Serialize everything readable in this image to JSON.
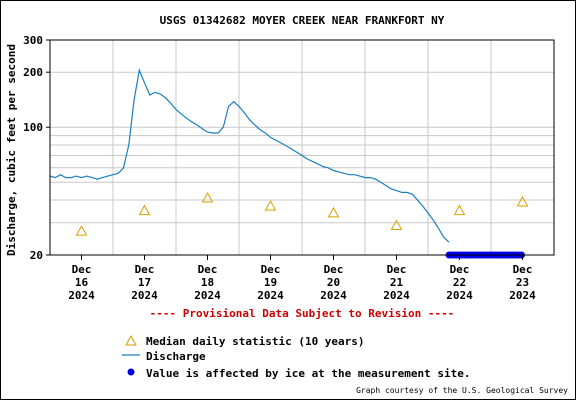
{
  "chart_data": {
    "type": "line",
    "title": "USGS 01342682 MOYER CREEK NEAR FRANKFORT NY",
    "ylabel": "Discharge, cubic feet per second",
    "y_scale": "log",
    "ylim": [
      20,
      300
    ],
    "y_ticks": [
      {
        "value": 20,
        "label": "20"
      },
      {
        "value": 100,
        "label": "100"
      },
      {
        "value": 200,
        "label": "200"
      },
      {
        "value": 300,
        "label": "300"
      }
    ],
    "xlim": [
      "2024-12-15T12:00",
      "2024-12-23T12:00"
    ],
    "x_ticks": [
      {
        "date": "2024-12-16",
        "lines": [
          "Dec",
          "16",
          "2024"
        ]
      },
      {
        "date": "2024-12-17",
        "lines": [
          "Dec",
          "17",
          "2024"
        ]
      },
      {
        "date": "2024-12-18",
        "lines": [
          "Dec",
          "18",
          "2024"
        ]
      },
      {
        "date": "2024-12-19",
        "lines": [
          "Dec",
          "19",
          "2024"
        ]
      },
      {
        "date": "2024-12-20",
        "lines": [
          "Dec",
          "20",
          "2024"
        ]
      },
      {
        "date": "2024-12-21",
        "lines": [
          "Dec",
          "21",
          "2024"
        ]
      },
      {
        "date": "2024-12-22",
        "lines": [
          "Dec",
          "22",
          "2024"
        ]
      },
      {
        "date": "2024-12-23",
        "lines": [
          "Dec",
          "23",
          "2024"
        ]
      }
    ],
    "grid": true,
    "provisional_notice": "---- Provisional Data Subject to Revision ----",
    "series": [
      {
        "name": "Discharge",
        "color": "#1a7fbf",
        "points": [
          [
            "2024-12-15T12:00",
            54
          ],
          [
            "2024-12-15T14:00",
            53
          ],
          [
            "2024-12-15T16:00",
            55
          ],
          [
            "2024-12-15T18:00",
            53
          ],
          [
            "2024-12-15T20:00",
            53
          ],
          [
            "2024-12-15T22:00",
            54
          ],
          [
            "2024-12-16T00:00",
            53
          ],
          [
            "2024-12-16T02:00",
            54
          ],
          [
            "2024-12-16T04:00",
            53
          ],
          [
            "2024-12-16T06:00",
            52
          ],
          [
            "2024-12-16T08:00",
            53
          ],
          [
            "2024-12-16T10:00",
            54
          ],
          [
            "2024-12-16T12:00",
            55
          ],
          [
            "2024-12-16T14:00",
            56
          ],
          [
            "2024-12-16T16:00",
            60
          ],
          [
            "2024-12-16T18:00",
            80
          ],
          [
            "2024-12-16T20:00",
            140
          ],
          [
            "2024-12-16T22:00",
            205
          ],
          [
            "2024-12-17T00:00",
            175
          ],
          [
            "2024-12-17T02:00",
            150
          ],
          [
            "2024-12-17T04:00",
            155
          ],
          [
            "2024-12-17T06:00",
            152
          ],
          [
            "2024-12-17T08:00",
            145
          ],
          [
            "2024-12-17T10:00",
            135
          ],
          [
            "2024-12-17T12:00",
            125
          ],
          [
            "2024-12-17T14:00",
            118
          ],
          [
            "2024-12-17T16:00",
            112
          ],
          [
            "2024-12-17T18:00",
            107
          ],
          [
            "2024-12-17T20:00",
            103
          ],
          [
            "2024-12-17T22:00",
            98
          ],
          [
            "2024-12-18T00:00",
            94
          ],
          [
            "2024-12-18T02:00",
            93
          ],
          [
            "2024-12-18T04:00",
            93
          ],
          [
            "2024-12-18T06:00",
            100
          ],
          [
            "2024-12-18T08:00",
            130
          ],
          [
            "2024-12-18T10:00",
            138
          ],
          [
            "2024-12-18T12:00",
            130
          ],
          [
            "2024-12-18T14:00",
            120
          ],
          [
            "2024-12-18T16:00",
            110
          ],
          [
            "2024-12-18T18:00",
            103
          ],
          [
            "2024-12-18T20:00",
            97
          ],
          [
            "2024-12-18T22:00",
            93
          ],
          [
            "2024-12-19T00:00",
            88
          ],
          [
            "2024-12-19T02:00",
            85
          ],
          [
            "2024-12-19T04:00",
            82
          ],
          [
            "2024-12-19T06:00",
            79
          ],
          [
            "2024-12-19T08:00",
            76
          ],
          [
            "2024-12-19T10:00",
            73
          ],
          [
            "2024-12-19T12:00",
            70
          ],
          [
            "2024-12-19T14:00",
            67
          ],
          [
            "2024-12-19T16:00",
            65
          ],
          [
            "2024-12-19T18:00",
            63
          ],
          [
            "2024-12-19T20:00",
            61
          ],
          [
            "2024-12-19T22:00",
            60
          ],
          [
            "2024-12-20T00:00",
            58
          ],
          [
            "2024-12-20T02:00",
            57
          ],
          [
            "2024-12-20T04:00",
            56
          ],
          [
            "2024-12-20T06:00",
            55
          ],
          [
            "2024-12-20T08:00",
            55
          ],
          [
            "2024-12-20T10:00",
            54
          ],
          [
            "2024-12-20T12:00",
            53
          ],
          [
            "2024-12-20T14:00",
            53
          ],
          [
            "2024-12-20T16:00",
            52
          ],
          [
            "2024-12-20T18:00",
            50
          ],
          [
            "2024-12-20T20:00",
            48
          ],
          [
            "2024-12-20T22:00",
            46
          ],
          [
            "2024-12-21T00:00",
            45
          ],
          [
            "2024-12-21T02:00",
            44
          ],
          [
            "2024-12-21T04:00",
            44
          ],
          [
            "2024-12-21T06:00",
            43
          ],
          [
            "2024-12-21T08:00",
            40
          ],
          [
            "2024-12-21T10:00",
            37
          ],
          [
            "2024-12-21T12:00",
            34
          ],
          [
            "2024-12-21T14:00",
            31
          ],
          [
            "2024-12-21T16:00",
            28
          ],
          [
            "2024-12-21T18:00",
            25
          ],
          [
            "2024-12-21T20:00",
            23.5
          ]
        ]
      },
      {
        "name": "Median daily statistic (10 years)",
        "color": "#d9a000",
        "marker": "triangle",
        "points": [
          [
            "2024-12-16",
            27
          ],
          [
            "2024-12-17",
            35
          ],
          [
            "2024-12-18",
            41
          ],
          [
            "2024-12-19",
            37
          ],
          [
            "2024-12-20",
            34
          ],
          [
            "2024-12-21",
            29
          ],
          [
            "2024-12-22",
            35
          ],
          [
            "2024-12-23",
            39
          ]
        ]
      },
      {
        "name": "Value is affected by ice at the measurement site.",
        "color": "#0000e6",
        "marker": "dot",
        "y_value": 20,
        "range": [
          "2024-12-21T20:00",
          "2024-12-23T00:00"
        ]
      }
    ],
    "legend_position": "bottom-left",
    "legend": [
      {
        "label": "Median daily statistic (10 years)",
        "symbol": "triangle"
      },
      {
        "label": "Discharge",
        "symbol": "line"
      },
      {
        "label": "Value is affected by ice at the measurement site.",
        "symbol": "dot"
      }
    ]
  },
  "credit": "Graph courtesy of the U.S. Geological Survey"
}
